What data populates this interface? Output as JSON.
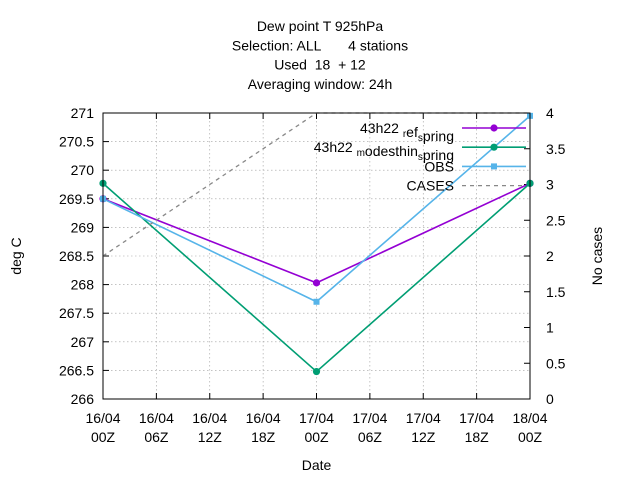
{
  "chart_data": {
    "type": "line",
    "title_lines": [
      "Dew point T 925hPa",
      "Selection: ALL       4 stations",
      "Used  18  + 12",
      "Averaging window: 24h"
    ],
    "xlabel": "Date",
    "ylabel": "deg C",
    "y2label": "No cases",
    "x_ticks": [
      {
        "day": "16/04",
        "hour": "00Z"
      },
      {
        "day": "16/04",
        "hour": "06Z"
      },
      {
        "day": "16/04",
        "hour": "12Z"
      },
      {
        "day": "16/04",
        "hour": "18Z"
      },
      {
        "day": "17/04",
        "hour": "00Z"
      },
      {
        "day": "17/04",
        "hour": "06Z"
      },
      {
        "day": "17/04",
        "hour": "12Z"
      },
      {
        "day": "17/04",
        "hour": "18Z"
      },
      {
        "day": "18/04",
        "hour": "00Z"
      }
    ],
    "ylim": [
      266,
      271
    ],
    "y_ticks": [
      "266",
      "266.5",
      "267",
      "267.5",
      "268",
      "268.5",
      "269",
      "269.5",
      "270",
      "270.5",
      "271"
    ],
    "y2lim": [
      0,
      4
    ],
    "y2_ticks": [
      "0",
      "0.5",
      "1",
      "1.5",
      "2",
      "2.5",
      "3",
      "3.5",
      "4"
    ],
    "grid": true,
    "legend_position": "top-right",
    "series": [
      {
        "name": "43h22 ref_spring",
        "legend_main": "43h22",
        "legend_parts": [
          [
            "",
            " "
          ],
          [
            "sub",
            "r"
          ],
          [
            "",
            "ef"
          ],
          [
            "sub",
            "s"
          ],
          [
            "",
            "pring"
          ]
        ],
        "color": "#9400d3",
        "axis": "y",
        "marker": "circle",
        "dash": false,
        "x": [
          "16/04 00Z",
          "17/04 00Z",
          "18/04 00Z"
        ],
        "values": [
          269.5,
          268.03,
          269.77
        ]
      },
      {
        "name": "43h22 modesthin_spring",
        "legend_main": "43h22",
        "legend_parts": [
          [
            "",
            " "
          ],
          [
            "sub",
            "m"
          ],
          [
            "",
            "odesthin"
          ],
          [
            "sub",
            "s"
          ],
          [
            "",
            "pring"
          ]
        ],
        "color": "#009e73",
        "axis": "y",
        "marker": "circle",
        "dash": false,
        "x": [
          "16/04 00Z",
          "17/04 00Z",
          "18/04 00Z"
        ],
        "values": [
          269.77,
          266.48,
          269.77
        ]
      },
      {
        "name": "OBS",
        "legend_main": "OBS",
        "legend_parts": [],
        "color": "#56b4e9",
        "axis": "y",
        "marker": "square",
        "dash": false,
        "x": [
          "16/04 00Z",
          "17/04 00Z",
          "18/04 00Z"
        ],
        "values": [
          269.5,
          267.7,
          270.95
        ]
      },
      {
        "name": "CASES",
        "legend_main": "CASES",
        "legend_parts": [],
        "color": "#888888",
        "axis": "y2",
        "marker": "none",
        "dash": true,
        "x": [
          "16/04 00Z",
          "17/04 00Z",
          "18/04 00Z"
        ],
        "values": [
          2,
          4,
          4
        ]
      }
    ]
  }
}
